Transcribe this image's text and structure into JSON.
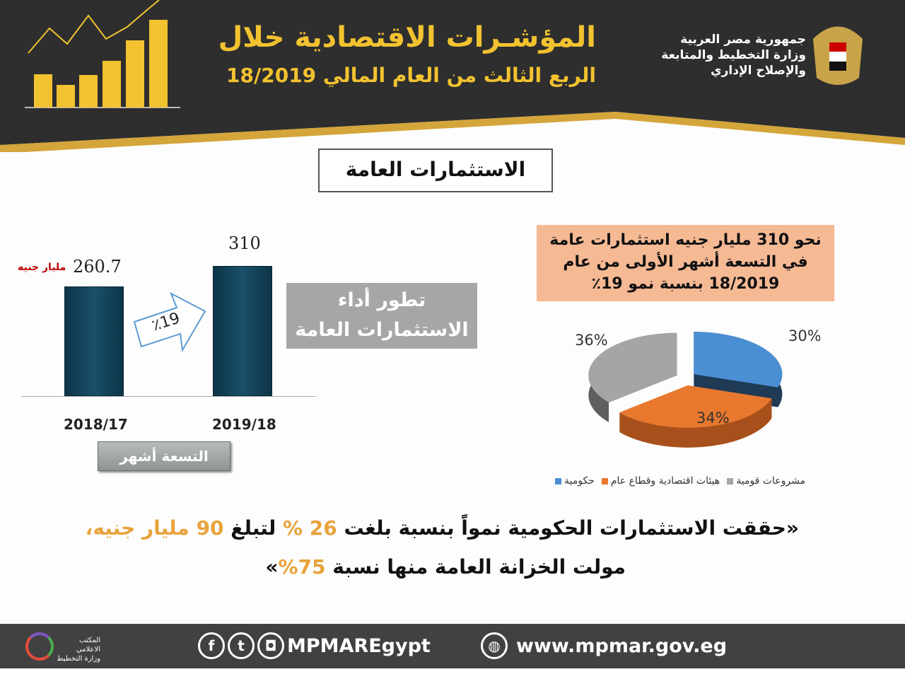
{
  "header": {
    "title_line1": "المؤشـرات الاقتصادية خلال",
    "title_line2": "الربع الثالث من العام المالي 18/2019",
    "ministry_line1": "جمهورية مصر العربية",
    "ministry_line2": "وزارة التخطيط والمتابعة",
    "ministry_line3": "والإصلاح الإداري"
  },
  "section_title": "الاستثمارات العامة",
  "bar_panel": {
    "unit_label": "مليار جنيه",
    "growth_label": "٪19",
    "title_line1": "تطور أداء",
    "title_line2": "الاستثمارات العامة",
    "period_label": "التسعة أشهر الأولى"
  },
  "summary": {
    "line1": "نحو 310 مليار جنيه استثمارات عامة",
    "line2": "في التسعة أشهر الأولى من عام",
    "line3": "18/2019 بنسبة نمو  19٪"
  },
  "quote": {
    "part1": "«حققت الاستثمارات الحكومية نمواً بنسبة بلغت",
    "pct": "26 %",
    "part2": "لتبلغ",
    "amount": "90 مليار جنيه،",
    "line2a": "مولت الخزانة العامة منها  نسبة",
    "line2pct": "75%",
    "line2end": "»"
  },
  "footer": {
    "media_line1": "المكتب الاعلامي",
    "media_line2": "وزارة التخطيط",
    "social_handle": "MPMAREgypt",
    "website": "www.mpmar.gov.eg"
  },
  "chart_data": [
    {
      "type": "bar",
      "title": "تطور أداء الاستثمارات العامة",
      "categories": [
        "2018/17",
        "2019/18"
      ],
      "values": [
        260.7,
        310
      ],
      "value_labels": [
        "260.7",
        "310"
      ],
      "ylabel": "مليار جنيه",
      "ylim": [
        0,
        330
      ],
      "growth": "19%"
    },
    {
      "type": "pie",
      "labels": [
        "حكومية",
        "هيئات اقتصادية وقطاع عام",
        "مشروعات قومية"
      ],
      "values": [
        30,
        34,
        36
      ],
      "value_labels": [
        "30%",
        "34%",
        "36%"
      ],
      "colors": [
        "#4a8fd4",
        "#e8782e",
        "#a5a5a5"
      ],
      "legend": "bottom"
    }
  ]
}
